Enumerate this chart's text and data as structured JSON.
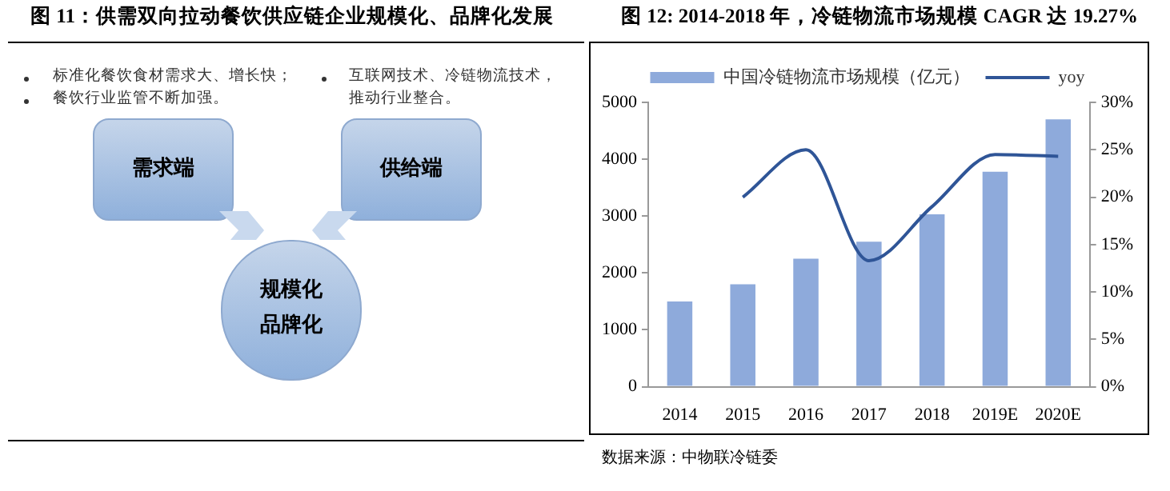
{
  "chart_data": [
    {
      "type": "other",
      "title": "图 11：供需双向拉动餐饮供应链企业规模化、品牌化发展",
      "annotations": [
        "标准化餐饮食材需求大、增长快；",
        "餐饮行业监管不断加强。",
        "互联网技术、冷链物流技术，推动行业整合。",
        "需求端",
        "供给端",
        "规模化",
        "品牌化"
      ]
    },
    {
      "type": "bar",
      "title": "图 12: 2014-2018 年，冷链物流市场规模 CAGR 达 19.27%",
      "categories": [
        "2014",
        "2015",
        "2016",
        "2017",
        "2018",
        "2019E",
        "2020E"
      ],
      "series": [
        {
          "type": "bar",
          "name": "中国冷链物流市场规模（亿元）",
          "color": "#8eaadb",
          "values": [
            1500,
            1800,
            2250,
            2550,
            3030,
            3780,
            4700
          ]
        },
        {
          "type": "line",
          "name": "yoy",
          "color": "#2f5597",
          "axis": "y2",
          "values": [
            null,
            20,
            25,
            13.3,
            19,
            24.5,
            24.3
          ]
        }
      ],
      "ylim": [
        0,
        5000
      ],
      "yticks": [
        0,
        1000,
        2000,
        3000,
        4000,
        5000
      ],
      "y2lim": [
        0,
        30
      ],
      "y2ticks": [
        {
          "value": 0,
          "label": "0%"
        },
        {
          "value": 5,
          "label": "5%"
        },
        {
          "value": 10,
          "label": "10%"
        },
        {
          "value": 15,
          "label": "15%"
        },
        {
          "value": 20,
          "label": "20%"
        },
        {
          "value": 25,
          "label": "25%"
        },
        {
          "value": 30,
          "label": "30%"
        }
      ],
      "grid": false,
      "legend": "top",
      "marker": "none",
      "line_style": "solid",
      "annotations": [
        "数据来源：中物联冷链委"
      ]
    }
  ]
}
